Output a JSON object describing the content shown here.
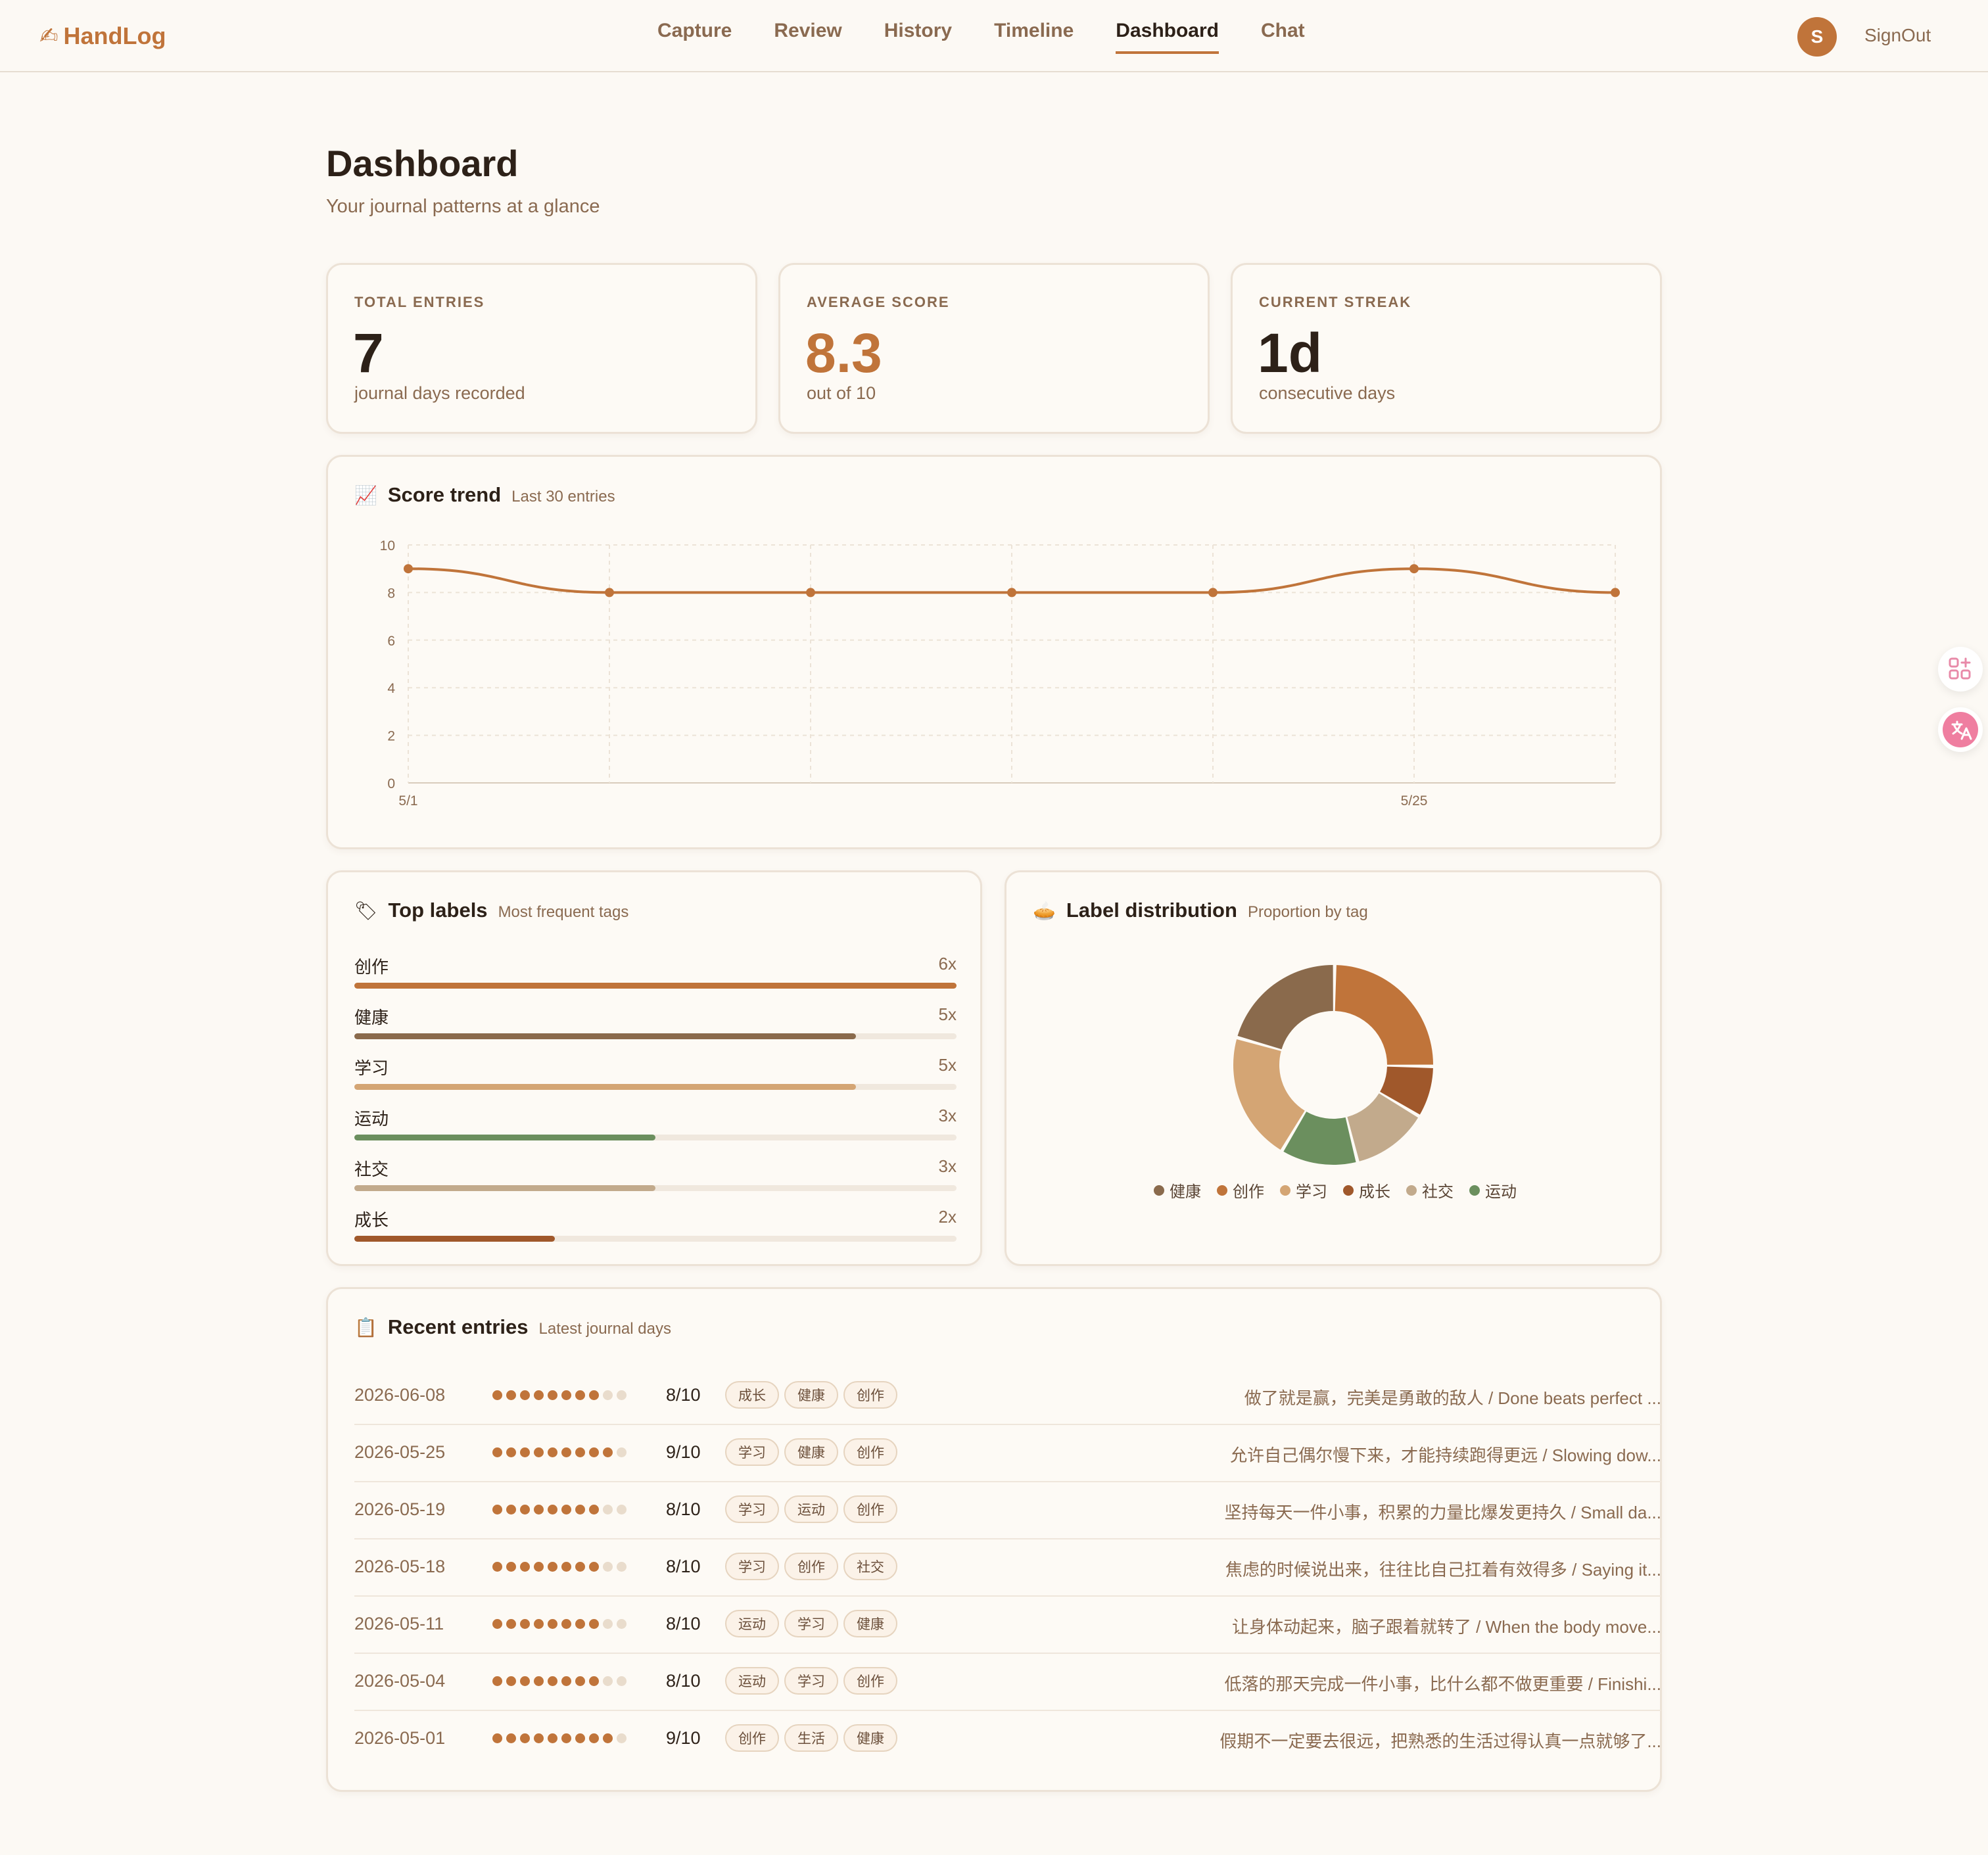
{
  "brand": {
    "icon": "✍",
    "name": "HandLog"
  },
  "nav": [
    "Capture",
    "Review",
    "History",
    "Timeline",
    "Dashboard",
    "Chat"
  ],
  "nav_active": "Dashboard",
  "user": {
    "avatar_initial": "S",
    "signout_label": "SignOut"
  },
  "header": {
    "title": "Dashboard",
    "subtitle": "Your journal patterns at a glance"
  },
  "stats": [
    {
      "label": "TOTAL ENTRIES",
      "value": "7",
      "caption": "journal days recorded",
      "accent": false
    },
    {
      "label": "AVERAGE SCORE",
      "value": "8.3",
      "caption": "out of 10",
      "accent": true
    },
    {
      "label": "CURRENT STREAK",
      "value": "1d",
      "caption": "consecutive days",
      "accent": false
    }
  ],
  "score_trend": {
    "icon": "📈",
    "title": "Score trend",
    "subtitle": "Last 30 entries"
  },
  "chart_data": {
    "type": "line",
    "x": [
      "5/1",
      "5/4",
      "5/11",
      "5/18",
      "5/19",
      "5/25",
      "6/8"
    ],
    "series": [
      {
        "values": [
          9,
          8,
          8,
          8,
          8,
          9,
          8
        ]
      }
    ],
    "x_tick_labels": [
      "5/1",
      "5/25"
    ],
    "y_ticks": [
      0,
      2,
      4,
      6,
      8,
      10
    ],
    "ylim": [
      0,
      10
    ],
    "grid": true,
    "color": "#c0743a"
  },
  "top_labels": {
    "icon": "🏷",
    "title": "Top labels",
    "subtitle": "Most frequent tags",
    "max": 6,
    "items": [
      {
        "name": "创作",
        "count": 6,
        "count_label": "6x",
        "color": "#c0743a"
      },
      {
        "name": "健康",
        "count": 5,
        "count_label": "5x",
        "color": "#8a6a4c"
      },
      {
        "name": "学习",
        "count": 5,
        "count_label": "5x",
        "color": "#d4a574"
      },
      {
        "name": "运动",
        "count": 3,
        "count_label": "3x",
        "color": "#6b8f5e"
      },
      {
        "name": "社交",
        "count": 3,
        "count_label": "3x",
        "color": "#c2aa8c"
      },
      {
        "name": "成长",
        "count": 2,
        "count_label": "2x",
        "color": "#a0582b"
      }
    ]
  },
  "label_distribution": {
    "icon": "🥧",
    "title": "Label distribution",
    "subtitle": "Proportion by tag",
    "slices": [
      {
        "name": "创作",
        "value": 6,
        "color": "#c0743a"
      },
      {
        "name": "成长",
        "value": 2,
        "color": "#a0582b"
      },
      {
        "name": "社交",
        "value": 3,
        "color": "#c2aa8c"
      },
      {
        "name": "运动",
        "value": 3,
        "color": "#6b8f5e"
      },
      {
        "name": "学习",
        "value": 5,
        "color": "#d4a574"
      },
      {
        "name": "健康",
        "value": 5,
        "color": "#8a6a4c"
      }
    ],
    "legend": [
      {
        "name": "健康",
        "color": "#8a6a4c"
      },
      {
        "name": "创作",
        "color": "#c0743a"
      },
      {
        "name": "学习",
        "color": "#d4a574"
      },
      {
        "name": "成长",
        "color": "#a0582b"
      },
      {
        "name": "社交",
        "color": "#c2aa8c"
      },
      {
        "name": "运动",
        "color": "#6b8f5e"
      }
    ]
  },
  "recent": {
    "icon": "📋",
    "title": "Recent entries",
    "subtitle": "Latest journal days",
    "entries": [
      {
        "date": "2026-06-08",
        "score": 8,
        "score_label": "8/10",
        "tags": [
          "成长",
          "健康",
          "创作"
        ],
        "quote": "做了就是赢，完美是勇敢的敌人 / Done beats perfect ..."
      },
      {
        "date": "2026-05-25",
        "score": 9,
        "score_label": "9/10",
        "tags": [
          "学习",
          "健康",
          "创作"
        ],
        "quote": "允许自己偶尔慢下来，才能持续跑得更远 / Slowing dow..."
      },
      {
        "date": "2026-05-19",
        "score": 8,
        "score_label": "8/10",
        "tags": [
          "学习",
          "运动",
          "创作"
        ],
        "quote": "坚持每天一件小事，积累的力量比爆发更持久 / Small da..."
      },
      {
        "date": "2026-05-18",
        "score": 8,
        "score_label": "8/10",
        "tags": [
          "学习",
          "创作",
          "社交"
        ],
        "quote": "焦虑的时候说出来，往往比自己扛着有效得多 / Saying it..."
      },
      {
        "date": "2026-05-11",
        "score": 8,
        "score_label": "8/10",
        "tags": [
          "运动",
          "学习",
          "健康"
        ],
        "quote": "让身体动起来，脑子跟着就转了 / When the body move..."
      },
      {
        "date": "2026-05-04",
        "score": 8,
        "score_label": "8/10",
        "tags": [
          "运动",
          "学习",
          "创作"
        ],
        "quote": "低落的那天完成一件小事，比什么都不做更重要 / Finishi..."
      },
      {
        "date": "2026-05-01",
        "score": 9,
        "score_label": "9/10",
        "tags": [
          "创作",
          "生活",
          "健康"
        ],
        "quote": "假期不一定要去很远，把熟悉的生活过得认真一点就够了..."
      }
    ]
  },
  "colors": {
    "accent": "#c0743a",
    "background": "#fcf9f4",
    "muted_text": "#8a6a50"
  }
}
